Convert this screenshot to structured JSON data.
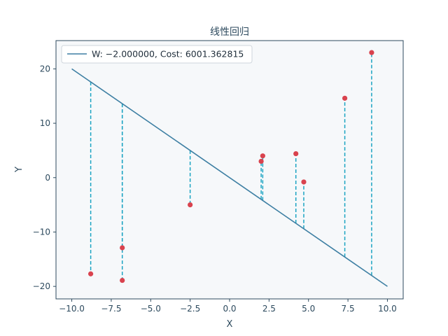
{
  "chart_data": {
    "type": "scatter",
    "title": "线性回归",
    "xlabel": "X",
    "ylabel": "Y",
    "xlim": [
      -11,
      11
    ],
    "ylim": [
      -22.3,
      25.2
    ],
    "xticks": [
      -10,
      -7.5,
      -5,
      -2.5,
      0,
      2.5,
      5,
      7.5,
      10
    ],
    "xtick_labels": [
      "−10.0",
      "−7.5",
      "−5.0",
      "−2.5",
      "0.0",
      "2.5",
      "5.0",
      "7.5",
      "10.0"
    ],
    "yticks": [
      -20,
      -10,
      0,
      10,
      20
    ],
    "ytick_labels": [
      "−20",
      "−10",
      "0",
      "10",
      "20"
    ],
    "grid": false,
    "legend_position": "top-left",
    "legend_label": "W: −2.000000, Cost: 6001.362815",
    "line": {
      "slope": -2,
      "x": [
        -10,
        10
      ],
      "y": [
        20,
        -20
      ]
    },
    "points": [
      {
        "x": -8.8,
        "y": -17.7
      },
      {
        "x": -6.8,
        "y": -12.9
      },
      {
        "x": -6.8,
        "y": -18.9
      },
      {
        "x": -2.5,
        "y": -5.0
      },
      {
        "x": 2.0,
        "y": 3.0
      },
      {
        "x": 2.1,
        "y": 4.0
      },
      {
        "x": 4.2,
        "y": 4.4
      },
      {
        "x": 4.7,
        "y": -0.8
      },
      {
        "x": 7.3,
        "y": 14.6
      },
      {
        "x": 9.0,
        "y": 23.0
      }
    ],
    "colors": {
      "line": "#3d7fa3",
      "points": "#d9434e",
      "residuals": "#1aa3c2",
      "plot_background": "#f6f8fa",
      "axes": "#2d4a5e"
    }
  }
}
